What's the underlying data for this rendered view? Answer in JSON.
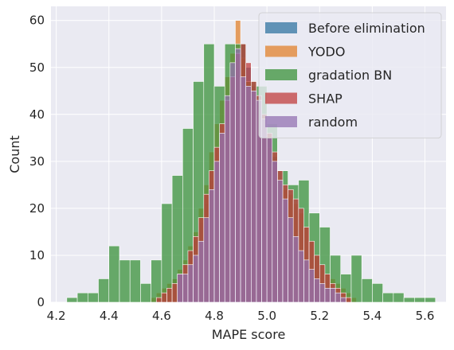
{
  "chart_data": {
    "type": "histogram",
    "xlabel": "MAPE score",
    "ylabel": "Count",
    "xlim": [
      4.18,
      5.68
    ],
    "ylim": [
      0,
      63
    ],
    "xticks": [
      "4.2",
      "4.4",
      "4.6",
      "4.8",
      "5.0",
      "5.2",
      "5.4",
      "5.6"
    ],
    "yticks": [
      "0",
      "10",
      "20",
      "30",
      "40",
      "50",
      "60"
    ],
    "grid": true,
    "legend_position": "top-right",
    "series": [
      {
        "name": "Before elimination",
        "color": "#3274a1",
        "bin_width": 0.02,
        "bins": [
          [
            4.58,
            1
          ],
          [
            4.6,
            2
          ],
          [
            4.62,
            3
          ],
          [
            4.64,
            5
          ],
          [
            4.66,
            6
          ],
          [
            4.68,
            8
          ],
          [
            4.7,
            11
          ],
          [
            4.72,
            13
          ],
          [
            4.74,
            17
          ],
          [
            4.76,
            21
          ],
          [
            4.78,
            26
          ],
          [
            4.8,
            30
          ],
          [
            4.82,
            36
          ],
          [
            4.84,
            40
          ],
          [
            4.86,
            45
          ],
          [
            4.88,
            50
          ],
          [
            4.9,
            55
          ],
          [
            4.92,
            50
          ],
          [
            4.94,
            46
          ],
          [
            4.96,
            44
          ],
          [
            4.98,
            40
          ],
          [
            5.0,
            35
          ],
          [
            5.02,
            31
          ],
          [
            5.04,
            26
          ],
          [
            5.06,
            22
          ],
          [
            5.08,
            17
          ],
          [
            5.1,
            13
          ],
          [
            5.12,
            10
          ],
          [
            5.14,
            8
          ],
          [
            5.16,
            6
          ],
          [
            5.18,
            4
          ],
          [
            5.2,
            3
          ],
          [
            5.22,
            2
          ],
          [
            5.24,
            1
          ]
        ]
      },
      {
        "name": "YODO",
        "color": "#e1812c",
        "bin_width": 0.02,
        "bins": [
          [
            4.56,
            1
          ],
          [
            4.58,
            2
          ],
          [
            4.6,
            3
          ],
          [
            4.62,
            4
          ],
          [
            4.64,
            5
          ],
          [
            4.66,
            7
          ],
          [
            4.68,
            9
          ],
          [
            4.7,
            12
          ],
          [
            4.72,
            15
          ],
          [
            4.74,
            20
          ],
          [
            4.76,
            25
          ],
          [
            4.78,
            32
          ],
          [
            4.8,
            38
          ],
          [
            4.82,
            43
          ],
          [
            4.84,
            48
          ],
          [
            4.86,
            53
          ],
          [
            4.88,
            60
          ],
          [
            4.9,
            52
          ],
          [
            4.92,
            47
          ],
          [
            4.94,
            45
          ],
          [
            4.96,
            42
          ],
          [
            4.98,
            38
          ],
          [
            5.0,
            33
          ],
          [
            5.02,
            29
          ],
          [
            5.04,
            26
          ],
          [
            5.06,
            24
          ],
          [
            5.08,
            23
          ],
          [
            5.1,
            21
          ],
          [
            5.12,
            19
          ],
          [
            5.14,
            16
          ],
          [
            5.16,
            13
          ],
          [
            5.18,
            10
          ],
          [
            5.2,
            8
          ],
          [
            5.22,
            6
          ],
          [
            5.24,
            5
          ],
          [
            5.26,
            4
          ],
          [
            5.28,
            3
          ],
          [
            5.3,
            2
          ],
          [
            5.32,
            1
          ]
        ]
      },
      {
        "name": "gradation BN",
        "color": "#3a923a",
        "bin_width": 0.04,
        "bins": [
          [
            4.24,
            1
          ],
          [
            4.28,
            2
          ],
          [
            4.32,
            2
          ],
          [
            4.36,
            5
          ],
          [
            4.4,
            12
          ],
          [
            4.44,
            9
          ],
          [
            4.48,
            9
          ],
          [
            4.52,
            4
          ],
          [
            4.56,
            9
          ],
          [
            4.6,
            21
          ],
          [
            4.64,
            27
          ],
          [
            4.68,
            37
          ],
          [
            4.72,
            47
          ],
          [
            4.76,
            55
          ],
          [
            4.8,
            46
          ],
          [
            4.84,
            55
          ],
          [
            4.88,
            55
          ],
          [
            4.92,
            47
          ],
          [
            4.96,
            46
          ],
          [
            5.0,
            38
          ],
          [
            5.04,
            28
          ],
          [
            5.08,
            25
          ],
          [
            5.12,
            26
          ],
          [
            5.16,
            19
          ],
          [
            5.2,
            16
          ],
          [
            5.24,
            10
          ],
          [
            5.28,
            6
          ],
          [
            5.32,
            10
          ],
          [
            5.36,
            5
          ],
          [
            5.4,
            4
          ],
          [
            5.44,
            2
          ],
          [
            5.48,
            2
          ],
          [
            5.52,
            1
          ],
          [
            5.56,
            1
          ],
          [
            5.6,
            1
          ]
        ]
      },
      {
        "name": "SHAP",
        "color": "#c03d3e",
        "bin_width": 0.02,
        "bins": [
          [
            4.58,
            1
          ],
          [
            4.6,
            2
          ],
          [
            4.62,
            3
          ],
          [
            4.64,
            4
          ],
          [
            4.66,
            6
          ],
          [
            4.68,
            8
          ],
          [
            4.7,
            11
          ],
          [
            4.72,
            14
          ],
          [
            4.74,
            18
          ],
          [
            4.76,
            23
          ],
          [
            4.78,
            28
          ],
          [
            4.8,
            33
          ],
          [
            4.82,
            38
          ],
          [
            4.84,
            43
          ],
          [
            4.86,
            48
          ],
          [
            4.88,
            53
          ],
          [
            4.9,
            55
          ],
          [
            4.92,
            51
          ],
          [
            4.94,
            47
          ],
          [
            4.96,
            44
          ],
          [
            4.98,
            40
          ],
          [
            5.0,
            36
          ],
          [
            5.02,
            32
          ],
          [
            5.04,
            28
          ],
          [
            5.06,
            25
          ],
          [
            5.08,
            24
          ],
          [
            5.1,
            22
          ],
          [
            5.12,
            20
          ],
          [
            5.14,
            16
          ],
          [
            5.16,
            13
          ],
          [
            5.18,
            10
          ],
          [
            5.2,
            8
          ],
          [
            5.22,
            6
          ],
          [
            5.24,
            4
          ],
          [
            5.26,
            3
          ],
          [
            5.28,
            2
          ],
          [
            5.3,
            1
          ]
        ]
      },
      {
        "name": "random",
        "color": "#9372b2",
        "bin_width": 0.02,
        "bins": [
          [
            4.66,
            6
          ],
          [
            4.68,
            6
          ],
          [
            4.7,
            8
          ],
          [
            4.72,
            10
          ],
          [
            4.74,
            13
          ],
          [
            4.76,
            18
          ],
          [
            4.78,
            24
          ],
          [
            4.8,
            30
          ],
          [
            4.82,
            36
          ],
          [
            4.84,
            44
          ],
          [
            4.86,
            51
          ],
          [
            4.88,
            54
          ],
          [
            4.9,
            48
          ],
          [
            4.92,
            46
          ],
          [
            4.94,
            45
          ],
          [
            4.96,
            43
          ],
          [
            4.98,
            39
          ],
          [
            5.0,
            35
          ],
          [
            5.02,
            30
          ],
          [
            5.04,
            26
          ],
          [
            5.06,
            22
          ],
          [
            5.08,
            18
          ],
          [
            5.1,
            14
          ],
          [
            5.12,
            11
          ],
          [
            5.14,
            9
          ],
          [
            5.16,
            7
          ],
          [
            5.18,
            5
          ],
          [
            5.2,
            4
          ],
          [
            5.22,
            3
          ],
          [
            5.24,
            3
          ],
          [
            5.26,
            2
          ],
          [
            5.28,
            1
          ]
        ]
      }
    ]
  }
}
